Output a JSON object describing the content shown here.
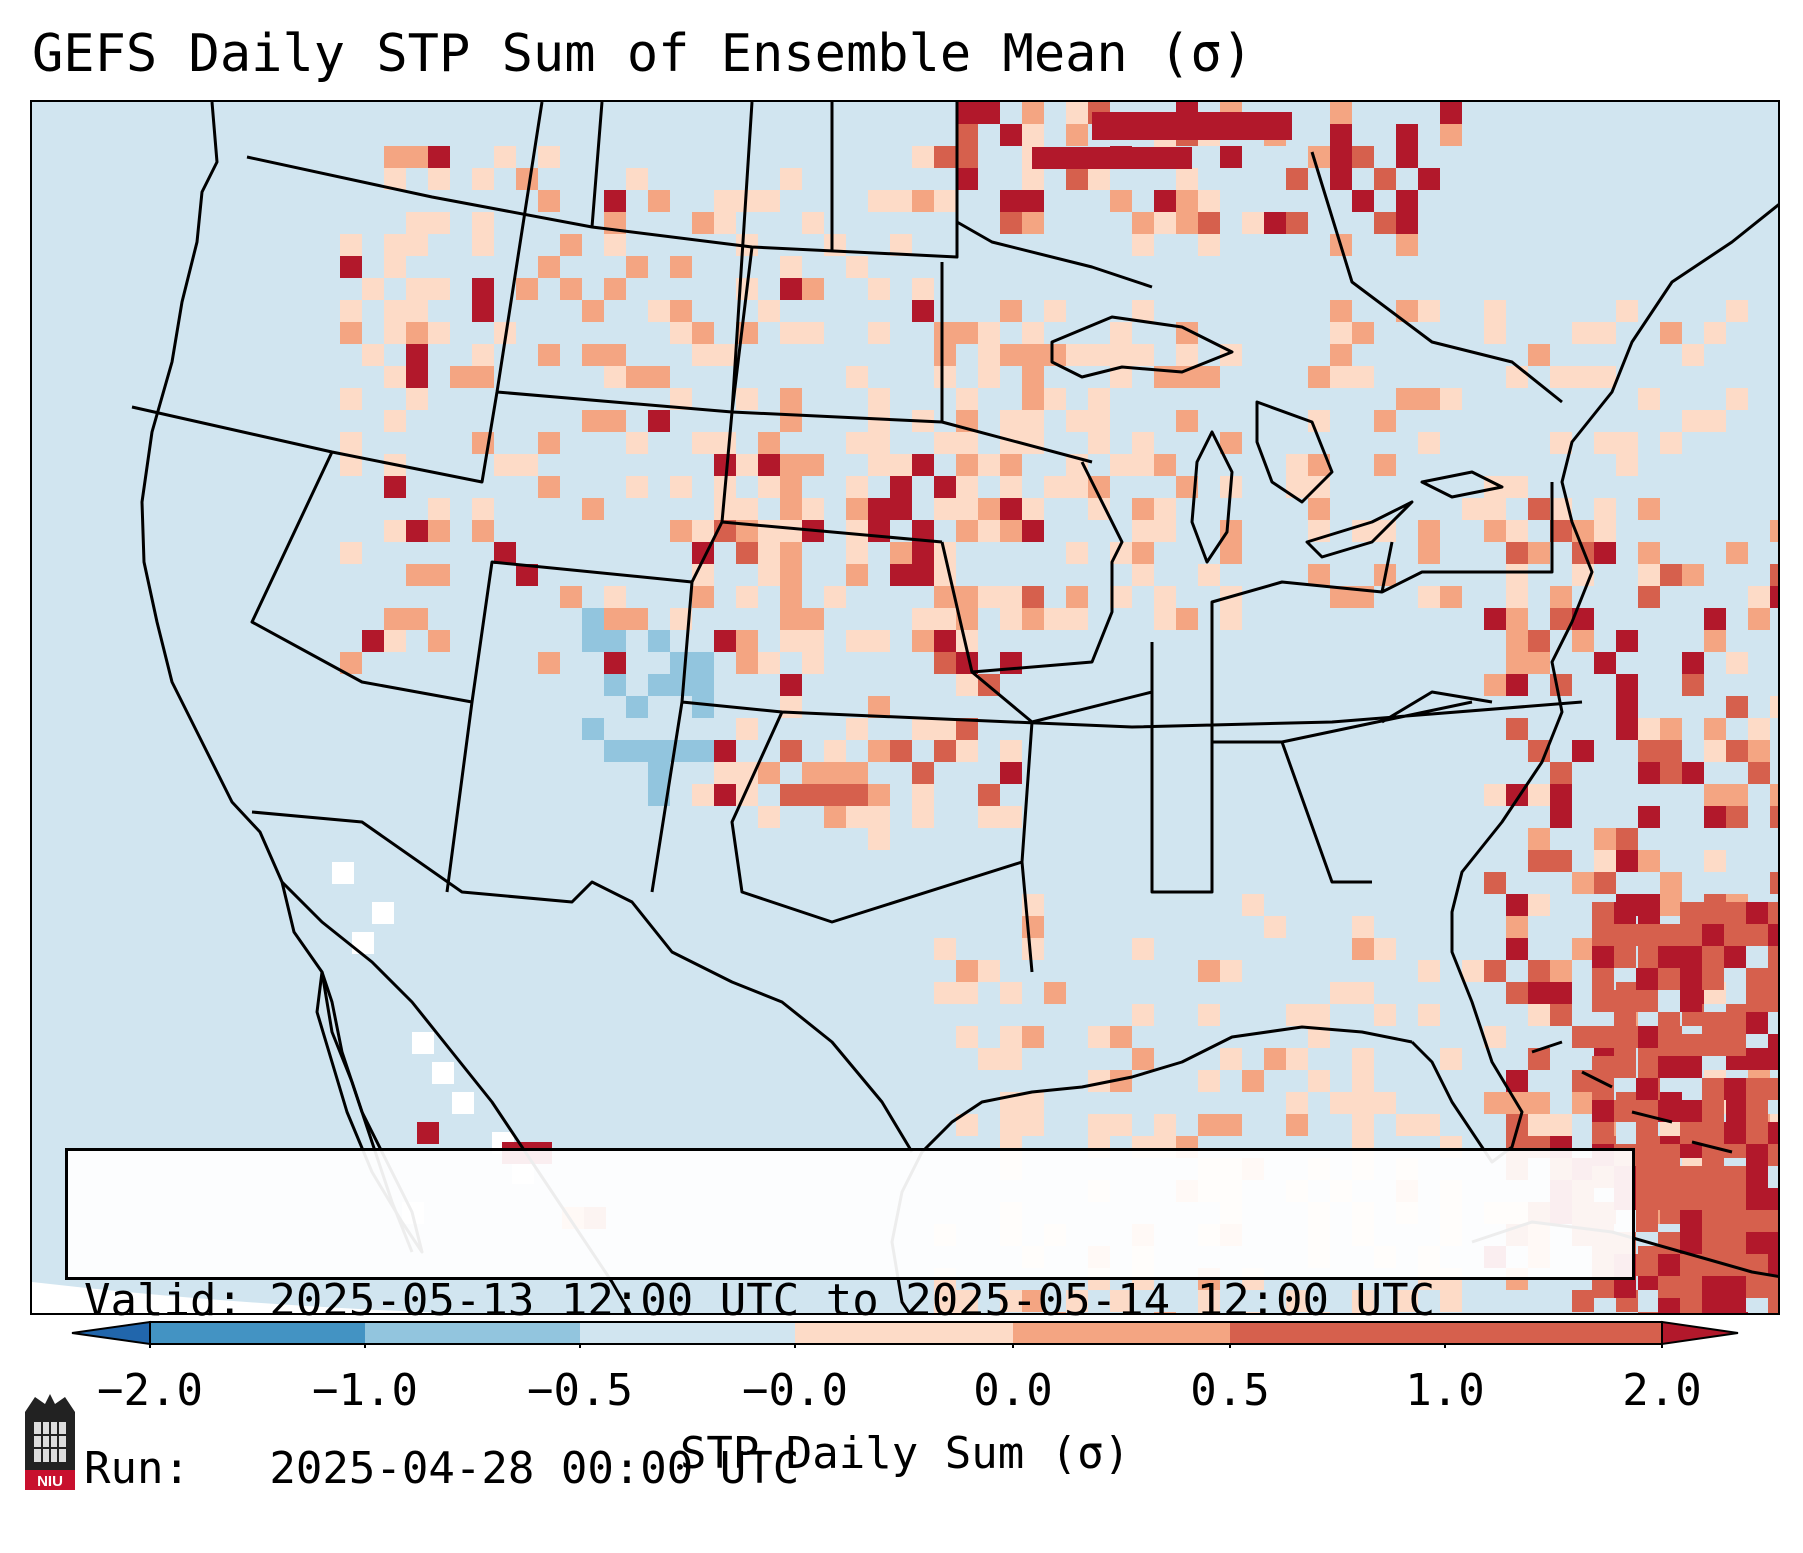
{
  "title": "GEFS Daily STP Sum of Ensemble Mean (σ)",
  "info": {
    "valid": "Valid: 2025-05-13 12:00 UTC to 2025-05-14 12:00 UTC",
    "run": "Run:   2025-04-28 00:00 UTC"
  },
  "colorbar": {
    "label": "STP Daily Sum (σ)",
    "ticks": [
      "−2.0",
      "−1.0",
      "−0.5",
      "−0.0",
      "0.0",
      "0.5",
      "1.0",
      "2.0"
    ],
    "colors": [
      "#2166ac",
      "#4393c3",
      "#92c5de",
      "#d1e5f0",
      "#fddbc7",
      "#f4a582",
      "#d6604d",
      "#b2182b"
    ]
  },
  "map": {
    "background_color": "#d1e5f0",
    "region": "CONUS, southern Canada, northern Mexico, Gulf of Mexico and western Atlantic",
    "blob_colors": {
      "light": "#fddbc7",
      "mid": "#f4a582",
      "strong": "#d6604d",
      "extreme": "#b2182b",
      "neg": "#92c5de"
    }
  },
  "logo": {
    "text": "NIU"
  }
}
